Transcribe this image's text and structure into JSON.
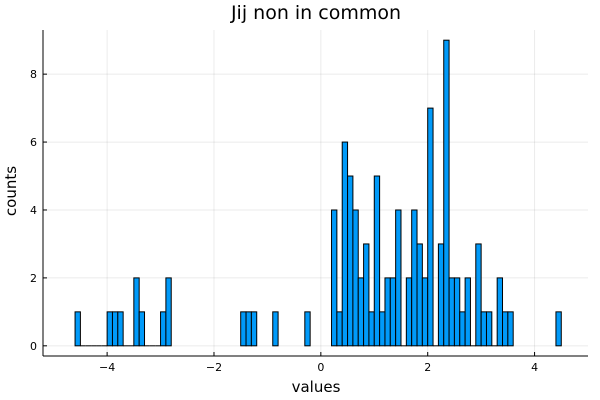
{
  "chart_data": {
    "type": "bar",
    "title": "Jij non in common",
    "xlabel": "values",
    "ylabel": "counts",
    "xlim": [
      -5.2,
      5.0
    ],
    "ylim": [
      -0.3,
      9.3
    ],
    "xticks": [
      -4,
      -2,
      0,
      2,
      4
    ],
    "xtick_labels": [
      "−4",
      "−2",
      "0",
      "2",
      "4"
    ],
    "yticks": [
      0,
      2,
      4,
      6,
      8
    ],
    "ytick_labels": [
      "0",
      "2",
      "4",
      "6",
      "8"
    ],
    "grid": true,
    "bar_color": "#009af9",
    "bin_width": 0.1,
    "bins": [
      {
        "x": -4.6,
        "count": 1
      },
      {
        "x": -4.5,
        "count": 0
      },
      {
        "x": -4.4,
        "count": 0
      },
      {
        "x": -4.3,
        "count": 0
      },
      {
        "x": -4.2,
        "count": 0
      },
      {
        "x": -4.1,
        "count": 0
      },
      {
        "x": -4.0,
        "count": 1
      },
      {
        "x": -3.9,
        "count": 1
      },
      {
        "x": -3.8,
        "count": 1
      },
      {
        "x": -3.7,
        "count": 0
      },
      {
        "x": -3.6,
        "count": 0
      },
      {
        "x": -3.5,
        "count": 2
      },
      {
        "x": -3.4,
        "count": 1
      },
      {
        "x": -3.3,
        "count": 0
      },
      {
        "x": -3.2,
        "count": 0
      },
      {
        "x": -3.1,
        "count": 0
      },
      {
        "x": -3.0,
        "count": 1
      },
      {
        "x": -2.9,
        "count": 2
      },
      {
        "x": -1.5,
        "count": 1
      },
      {
        "x": -1.4,
        "count": 1
      },
      {
        "x": -1.3,
        "count": 1
      },
      {
        "x": -0.9,
        "count": 1
      },
      {
        "x": -0.3,
        "count": 1
      },
      {
        "x": 0.2,
        "count": 4
      },
      {
        "x": 0.3,
        "count": 1
      },
      {
        "x": 0.4,
        "count": 6
      },
      {
        "x": 0.5,
        "count": 5
      },
      {
        "x": 0.6,
        "count": 4
      },
      {
        "x": 0.7,
        "count": 2
      },
      {
        "x": 0.8,
        "count": 3
      },
      {
        "x": 0.9,
        "count": 1
      },
      {
        "x": 1.0,
        "count": 5
      },
      {
        "x": 1.1,
        "count": 1
      },
      {
        "x": 1.2,
        "count": 2
      },
      {
        "x": 1.3,
        "count": 2
      },
      {
        "x": 1.4,
        "count": 4
      },
      {
        "x": 1.5,
        "count": 0
      },
      {
        "x": 1.6,
        "count": 2
      },
      {
        "x": 1.7,
        "count": 4
      },
      {
        "x": 1.8,
        "count": 3
      },
      {
        "x": 1.9,
        "count": 2
      },
      {
        "x": 2.0,
        "count": 7
      },
      {
        "x": 2.1,
        "count": 0
      },
      {
        "x": 2.2,
        "count": 3
      },
      {
        "x": 2.3,
        "count": 9
      },
      {
        "x": 2.4,
        "count": 2
      },
      {
        "x": 2.5,
        "count": 2
      },
      {
        "x": 2.6,
        "count": 1
      },
      {
        "x": 2.7,
        "count": 2
      },
      {
        "x": 2.8,
        "count": 0
      },
      {
        "x": 2.9,
        "count": 3
      },
      {
        "x": 3.0,
        "count": 1
      },
      {
        "x": 3.1,
        "count": 1
      },
      {
        "x": 3.2,
        "count": 0
      },
      {
        "x": 3.3,
        "count": 2
      },
      {
        "x": 3.4,
        "count": 1
      },
      {
        "x": 3.5,
        "count": 1
      },
      {
        "x": 4.4,
        "count": 1
      }
    ]
  }
}
